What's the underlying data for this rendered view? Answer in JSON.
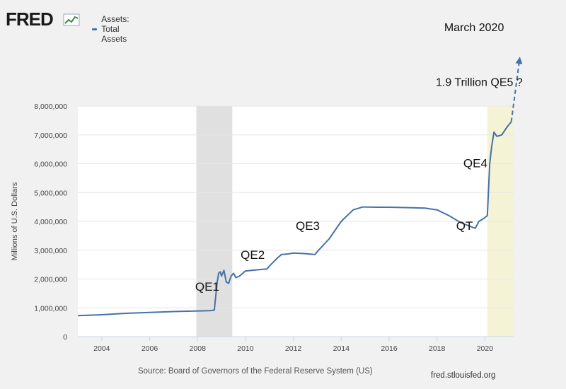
{
  "brand": {
    "name": "FRED",
    "color": "#c62e2e"
  },
  "legend": {
    "label": "Assets: Total Assets",
    "color": "#4572a7"
  },
  "source_text": "Source: Board of Governors of the Federal Reserve System (US)",
  "site_text": "fred.stlouisfed.org",
  "chart_data": {
    "type": "line",
    "title": "",
    "xlabel": "",
    "ylabel": "Millions of U.S. Dollars",
    "xlim": [
      2003.0,
      2021.2
    ],
    "ylim": [
      0,
      8000000
    ],
    "x_ticks": [
      "2004",
      "2006",
      "2008",
      "2010",
      "2012",
      "2014",
      "2016",
      "2018",
      "2020"
    ],
    "y_ticks": [
      "0",
      "1,000,000",
      "2,000,000",
      "3,000,000",
      "4,000,000",
      "5,000,000",
      "6,000,000",
      "7,000,000",
      "8,000,000"
    ],
    "grid": "horizontal",
    "legend_position": "top-left",
    "recessions": [
      {
        "start": 2007.95,
        "end": 2009.45,
        "color": "#e0e0e0"
      },
      {
        "start": 2020.1,
        "end": 2021.2,
        "color": "#f5f3d6"
      }
    ],
    "series": [
      {
        "name": "Assets: Total Assets",
        "color": "#4572a7",
        "points": [
          [
            2003.0,
            730000
          ],
          [
            2004.0,
            760000
          ],
          [
            2005.0,
            810000
          ],
          [
            2006.0,
            840000
          ],
          [
            2007.0,
            870000
          ],
          [
            2007.9,
            890000
          ],
          [
            2008.5,
            900000
          ],
          [
            2008.7,
            920000
          ],
          [
            2008.82,
            1900000
          ],
          [
            2008.88,
            2200000
          ],
          [
            2008.95,
            2250000
          ],
          [
            2009.0,
            2100000
          ],
          [
            2009.1,
            2300000
          ],
          [
            2009.2,
            1900000
          ],
          [
            2009.3,
            1850000
          ],
          [
            2009.4,
            2100000
          ],
          [
            2009.5,
            2200000
          ],
          [
            2009.6,
            2050000
          ],
          [
            2009.75,
            2100000
          ],
          [
            2010.0,
            2280000
          ],
          [
            2010.5,
            2320000
          ],
          [
            2010.9,
            2350000
          ],
          [
            2011.0,
            2450000
          ],
          [
            2011.3,
            2700000
          ],
          [
            2011.5,
            2850000
          ],
          [
            2011.8,
            2870000
          ],
          [
            2012.0,
            2900000
          ],
          [
            2012.5,
            2880000
          ],
          [
            2012.9,
            2850000
          ],
          [
            2013.0,
            2950000
          ],
          [
            2013.5,
            3400000
          ],
          [
            2014.0,
            4000000
          ],
          [
            2014.5,
            4400000
          ],
          [
            2014.9,
            4500000
          ],
          [
            2015.5,
            4490000
          ],
          [
            2016.0,
            4490000
          ],
          [
            2016.5,
            4480000
          ],
          [
            2017.0,
            4470000
          ],
          [
            2017.5,
            4460000
          ],
          [
            2018.0,
            4400000
          ],
          [
            2018.5,
            4200000
          ],
          [
            2019.0,
            3950000
          ],
          [
            2019.6,
            3760000
          ],
          [
            2019.75,
            4000000
          ],
          [
            2019.95,
            4100000
          ],
          [
            2020.1,
            4200000
          ],
          [
            2020.2,
            6000000
          ],
          [
            2020.28,
            6600000
          ],
          [
            2020.38,
            7100000
          ],
          [
            2020.5,
            6950000
          ],
          [
            2020.7,
            7000000
          ],
          [
            2020.95,
            7300000
          ],
          [
            2021.1,
            7450000
          ]
        ],
        "projection": {
          "from": [
            2021.1,
            7450000
          ],
          "to": [
            2021.45,
            9640000
          ]
        }
      }
    ],
    "annotations": [
      {
        "text": "QE1",
        "x": 2007.9,
        "y": 1600000
      },
      {
        "text": "QE2",
        "x": 2009.8,
        "y": 2700000
      },
      {
        "text": "QE3",
        "x": 2012.1,
        "y": 3700000
      },
      {
        "text": "QT",
        "x": 2018.8,
        "y": 3700000
      },
      {
        "text": "QE4",
        "x": 2019.1,
        "y": 5880000
      },
      {
        "text": "1.9 Trillion QE5 ?",
        "x": 2017.95,
        "y": 8700000
      },
      {
        "text": "March 2020",
        "x": 2018.3,
        "y": 10600000
      }
    ]
  }
}
